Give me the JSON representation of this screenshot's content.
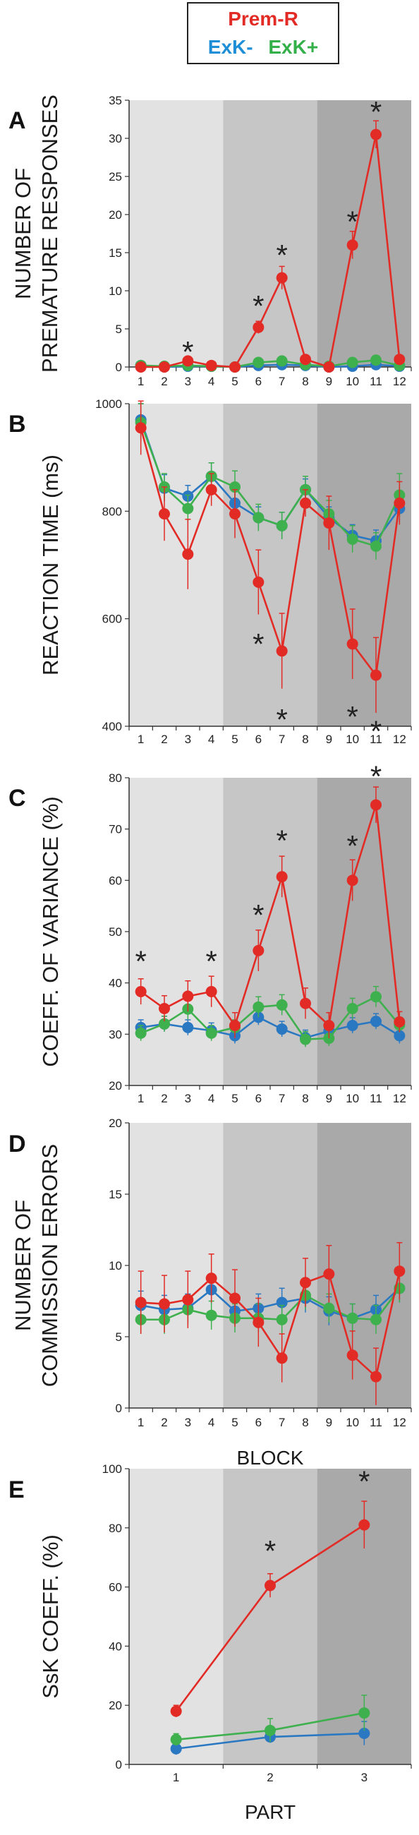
{
  "legend": {
    "series1": "Prem-R",
    "series2": "ExK-",
    "series3": "ExK+"
  },
  "colors": {
    "Prem-R": "#e32b26",
    "ExK-": "#2a78c2",
    "ExK+": "#3fb04e",
    "band1": "#e2e2e2",
    "band2": "#c6c6c6",
    "band3": "#a9a9a9"
  },
  "chart_data": [
    {
      "panel": "A",
      "type": "line",
      "ylabel": [
        "NUMBER OF",
        "PREMATURE RESPONSES"
      ],
      "xlabel": "",
      "x": [
        1,
        2,
        3,
        4,
        5,
        6,
        7,
        8,
        9,
        10,
        11,
        12
      ],
      "ylim": [
        0,
        35
      ],
      "yticks": [
        0,
        5,
        10,
        15,
        20,
        25,
        30,
        35
      ],
      "series": [
        {
          "name": "Prem-R",
          "values": [
            0,
            0,
            0.8,
            0.2,
            0,
            5.2,
            11.7,
            1,
            0,
            16,
            30.5,
            1
          ],
          "err": [
            0.2,
            0.2,
            0.5,
            0.2,
            0.2,
            0.8,
            1.5,
            0.5,
            0.2,
            1.8,
            1.8,
            0.5
          ]
        },
        {
          "name": "ExK-",
          "values": [
            0.2,
            0,
            0.1,
            0.1,
            0,
            0.2,
            0.3,
            0.2,
            0,
            0.1,
            0.3,
            0.1
          ],
          "err": [
            0.2,
            0.1,
            0.1,
            0.1,
            0.1,
            0.2,
            0.2,
            0.2,
            0.1,
            0.2,
            0.3,
            0.1
          ]
        },
        {
          "name": "ExK+",
          "values": [
            0.2,
            0.1,
            0.2,
            0.1,
            0,
            0.6,
            0.8,
            0.3,
            0.1,
            0.6,
            0.9,
            0.2
          ],
          "err": [
            0.2,
            0.1,
            0.2,
            0.1,
            0.1,
            0.4,
            0.5,
            0.3,
            0.1,
            0.4,
            0.6,
            0.2
          ]
        }
      ],
      "annotations": [
        {
          "text": "*",
          "x": 3,
          "y": 2.5
        },
        {
          "text": "*",
          "x": 6,
          "y": 8.5
        },
        {
          "text": "*",
          "x": 7,
          "y": 15.2
        },
        {
          "text": "*",
          "x": 10,
          "y": 19.6
        },
        {
          "text": "*",
          "x": 11,
          "y": 34
        }
      ]
    },
    {
      "panel": "B",
      "type": "line",
      "ylabel": [
        "REACTION TIME (ms)"
      ],
      "xlabel": "",
      "x": [
        1,
        2,
        3,
        4,
        5,
        6,
        7,
        8,
        9,
        10,
        11,
        12
      ],
      "ylim": [
        400,
        1000
      ],
      "yticks": [
        400,
        600,
        800,
        1000
      ],
      "series": [
        {
          "name": "Prem-R",
          "values": [
            955,
            795,
            720,
            840,
            795,
            668,
            540,
            815,
            778,
            553,
            495,
            815
          ],
          "err": [
            50,
            50,
            65,
            30,
            45,
            60,
            70,
            25,
            50,
            65,
            70,
            40
          ]
        },
        {
          "name": "ExK-",
          "values": [
            970,
            843,
            828,
            865,
            815,
            788,
            773,
            840,
            788,
            755,
            745,
            805
          ],
          "err": [
            30,
            25,
            20,
            25,
            30,
            20,
            25,
            20,
            20,
            20,
            20,
            25
          ]
        },
        {
          "name": "ExK+",
          "values": [
            965,
            845,
            805,
            865,
            845,
            788,
            773,
            840,
            795,
            748,
            735,
            830
          ],
          "err": [
            35,
            25,
            25,
            25,
            30,
            25,
            25,
            25,
            25,
            25,
            25,
            40
          ]
        }
      ],
      "annotations": [
        {
          "text": "*",
          "x": 6,
          "y": 560
        },
        {
          "text": "*",
          "x": 7,
          "y": 420
        },
        {
          "text": "*",
          "x": 10,
          "y": 425
        },
        {
          "text": "*",
          "x": 11,
          "y": 398
        }
      ]
    },
    {
      "panel": "C",
      "type": "line",
      "ylabel": [
        "COEFF. OF VARIANCE (%)"
      ],
      "xlabel": "",
      "x": [
        1,
        2,
        3,
        4,
        5,
        6,
        7,
        8,
        9,
        10,
        11,
        12
      ],
      "ylim": [
        20,
        80
      ],
      "yticks": [
        20,
        30,
        40,
        50,
        60,
        70,
        80
      ],
      "series": [
        {
          "name": "Prem-R",
          "values": [
            38.3,
            35,
            37.4,
            38.3,
            31.7,
            46.3,
            60.7,
            36,
            31.7,
            60,
            74.7,
            32.4
          ],
          "err": [
            2.5,
            2.5,
            3,
            3,
            2.5,
            4,
            4,
            3,
            2.5,
            4,
            3.5,
            2
          ]
        },
        {
          "name": "ExK-",
          "values": [
            31.3,
            32,
            31.3,
            30.7,
            29.7,
            33.3,
            31,
            29.3,
            30.6,
            31.7,
            32.5,
            29.7
          ],
          "err": [
            1.5,
            1.5,
            1.5,
            1.5,
            1.5,
            1.5,
            1.5,
            1.5,
            1.5,
            1.5,
            1.5,
            1.5
          ]
        },
        {
          "name": "ExK+",
          "values": [
            30.2,
            32,
            34.9,
            30.2,
            31.3,
            35.3,
            35.7,
            29,
            29.2,
            35,
            37.3,
            31.8
          ],
          "err": [
            1.5,
            1.5,
            2,
            1.5,
            1.5,
            2,
            2,
            1.5,
            1.5,
            2,
            2,
            1.5
          ]
        }
      ],
      "annotations": [
        {
          "text": "*",
          "x": 1,
          "y": 45
        },
        {
          "text": "*",
          "x": 4,
          "y": 45
        },
        {
          "text": "*",
          "x": 6,
          "y": 54
        },
        {
          "text": "*",
          "x": 7,
          "y": 68.5
        },
        {
          "text": "*",
          "x": 10,
          "y": 67.5
        },
        {
          "text": "*",
          "x": 11,
          "y": 81
        }
      ]
    },
    {
      "panel": "D",
      "type": "line",
      "ylabel": [
        "NUMBER OF",
        "COMMISSION ERRORS"
      ],
      "xlabel": "BLOCK",
      "x": [
        1,
        2,
        3,
        4,
        5,
        6,
        7,
        8,
        9,
        10,
        11,
        12
      ],
      "ylim": [
        0,
        20
      ],
      "yticks": [
        0,
        5,
        10,
        15,
        20
      ],
      "series": [
        {
          "name": "Prem-R",
          "values": [
            7.4,
            7.3,
            7.6,
            9.1,
            7.7,
            6.0,
            3.5,
            8.8,
            9.4,
            3.7,
            2.2,
            9.6
          ],
          "err": [
            2.2,
            2,
            2,
            1.7,
            2,
            1.7,
            1.7,
            1.7,
            2,
            1.7,
            2,
            2
          ]
        },
        {
          "name": "ExK-",
          "values": [
            7.2,
            6.9,
            7.0,
            8.3,
            6.8,
            7.0,
            7.4,
            7.7,
            6.8,
            6.3,
            6.9,
            8.4
          ],
          "err": [
            1,
            1,
            1,
            1,
            1,
            1,
            1,
            1,
            1,
            1,
            1,
            1
          ]
        },
        {
          "name": "ExK+",
          "values": [
            6.2,
            6.2,
            6.9,
            6.5,
            6.3,
            6.3,
            6.2,
            7.9,
            7.0,
            6.3,
            6.2,
            8.4
          ],
          "err": [
            1,
            1,
            1,
            1,
            1,
            1,
            1,
            1,
            1,
            1,
            1,
            1
          ]
        }
      ],
      "annotations": []
    },
    {
      "panel": "E",
      "type": "line",
      "ylabel": [
        "SsK COEFF. (%)"
      ],
      "xlabel": "PART",
      "x": [
        1,
        2,
        3
      ],
      "ylim": [
        0,
        100
      ],
      "yticks": [
        0,
        20,
        40,
        60,
        80,
        100
      ],
      "series": [
        {
          "name": "Prem-R",
          "values": [
            18,
            60.5,
            81
          ],
          "err": [
            2,
            4,
            8
          ]
        },
        {
          "name": "ExK-",
          "values": [
            5.3,
            9.3,
            10.5
          ],
          "err": [
            2,
            2,
            4
          ]
        },
        {
          "name": "ExK+",
          "values": [
            8.4,
            11.5,
            17.4
          ],
          "err": [
            2,
            4,
            6
          ]
        }
      ],
      "annotations": [
        {
          "text": "*",
          "x": 2,
          "y": 73.5
        },
        {
          "text": "*",
          "x": 3,
          "y": 97
        }
      ]
    }
  ]
}
